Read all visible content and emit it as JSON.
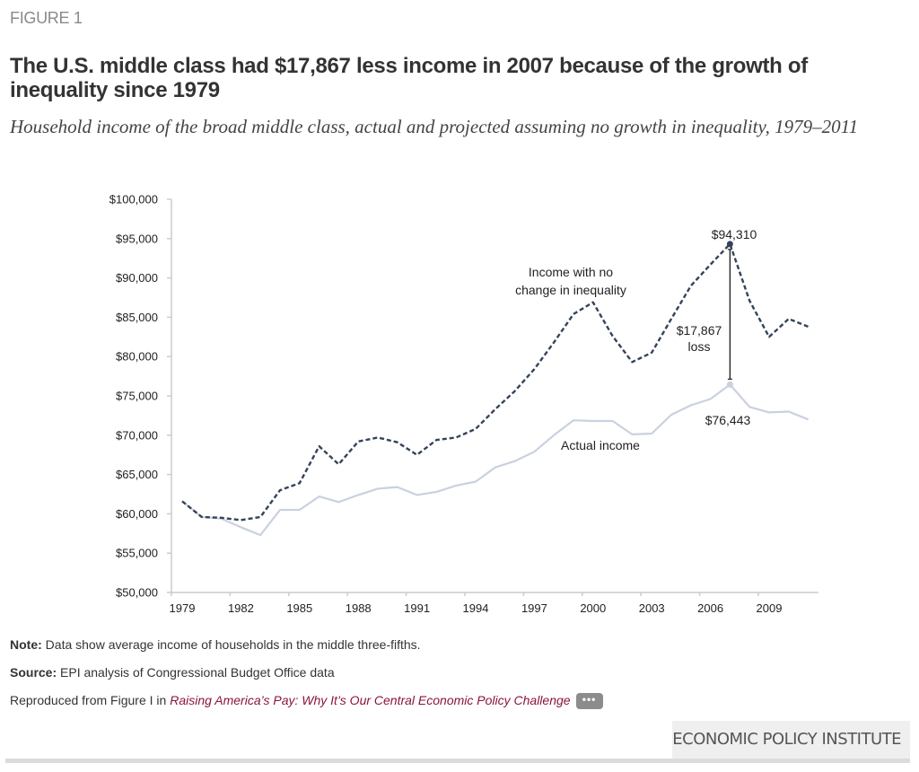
{
  "figure_label": "FIGURE 1",
  "title": "The U.S. middle class had $17,867 less income in 2007 because of the growth of inequality since 1979",
  "subtitle": "Household income of the broad middle class, actual and projected assuming no growth in inequality, 1979–2011",
  "notes": {
    "note_label": "Note:",
    "note_text": " Data show average income of households in the middle three-fifths.",
    "source_label": "Source:",
    "source_text": " EPI analysis of Congressional Budget Office data",
    "reproduced_prefix": "Reproduced from Figure I in ",
    "report_title": "Raising America’s Pay: Why It’s Our Central Economic Policy Challenge",
    "more_button": "•••"
  },
  "brand": "ECONOMIC POLICY INSTITUTE",
  "colors": {
    "dashed_series": "#34435a",
    "actual_series": "#c9d1e0",
    "axis": "#cccccc",
    "link": "#8a1538"
  },
  "chart_data": {
    "type": "line",
    "title": "Household income of the broad middle class, actual and projected assuming no growth in inequality, 1979–2011",
    "xlabel": "",
    "ylabel": "",
    "ylim": [
      50000,
      100000
    ],
    "yticks": [
      50000,
      55000,
      60000,
      65000,
      70000,
      75000,
      80000,
      85000,
      90000,
      95000,
      100000
    ],
    "ytick_labels": [
      "$50,000",
      "$55,000",
      "$60,000",
      "$65,000",
      "$70,000",
      "$75,000",
      "$80,000",
      "$85,000",
      "$90,000",
      "$95,000",
      "$100,000"
    ],
    "xtick_labels": [
      "1979",
      "1982",
      "1985",
      "1988",
      "1991",
      "1994",
      "1997",
      "2000",
      "2003",
      "2006",
      "2009"
    ],
    "x": [
      1979,
      1980,
      1981,
      1982,
      1983,
      1984,
      1985,
      1986,
      1987,
      1988,
      1989,
      1990,
      1991,
      1992,
      1993,
      1994,
      1995,
      1996,
      1997,
      1998,
      1999,
      2000,
      2001,
      2002,
      2003,
      2004,
      2005,
      2006,
      2007,
      2008,
      2009,
      2010,
      2011
    ],
    "grid": false,
    "series": [
      {
        "name": "Income with no change in inequality",
        "style": "dashed",
        "values": [
          61600,
          59600,
          59500,
          59200,
          59600,
          63000,
          63900,
          68600,
          66300,
          69200,
          69700,
          69100,
          67500,
          69400,
          69700,
          70800,
          73300,
          75600,
          78400,
          81800,
          85400,
          86900,
          82600,
          79300,
          80500,
          84800,
          89000,
          91700,
          94310,
          87100,
          82500,
          84800,
          83800
        ]
      },
      {
        "name": "Actual income",
        "style": "solid",
        "values": [
          61600,
          59600,
          59400,
          58300,
          57300,
          60500,
          60500,
          62200,
          61500,
          62400,
          63200,
          63400,
          62400,
          62800,
          63600,
          64100,
          65900,
          66700,
          67900,
          70000,
          71900,
          71800,
          71800,
          70100,
          70200,
          72600,
          73800,
          74600,
          76443,
          73600,
          72900,
          73000,
          72000
        ]
      }
    ],
    "annotations": {
      "dashed_label_line1": "Income with no",
      "dashed_label_line2": "change in inequality",
      "actual_label": "Actual income",
      "peak_label": "$94,310",
      "actual_peak_label": "$76,443",
      "gap_label_line1": "$17,867",
      "gap_label_line2": "loss",
      "gap_year": 2007
    }
  }
}
